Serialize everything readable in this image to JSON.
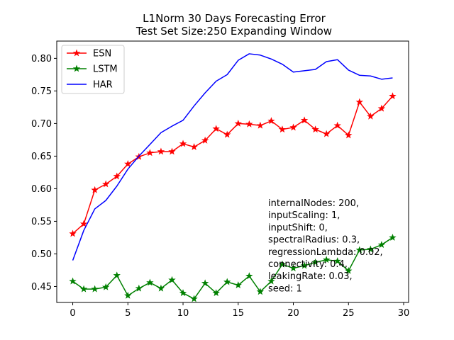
{
  "chart_data": {
    "type": "line",
    "title_lines": [
      "L1Norm 30 Days Forecasting Error",
      "Test Set Size:250  Expanding Window"
    ],
    "xlabel": "",
    "ylabel": "",
    "xlim": [
      -1.45,
      30.45
    ],
    "ylim": [
      0.4255,
      0.8265
    ],
    "xticks": [
      0,
      5,
      10,
      15,
      20,
      25,
      30
    ],
    "yticks": [
      0.45,
      0.5,
      0.55,
      0.6,
      0.65,
      0.7,
      0.75,
      0.8
    ],
    "ytick_labels": [
      "0.45",
      "0.50",
      "0.55",
      "0.60",
      "0.65",
      "0.70",
      "0.75",
      "0.80"
    ],
    "grid": false,
    "legend_position": "top-left",
    "x": [
      0,
      1,
      2,
      3,
      4,
      5,
      6,
      7,
      8,
      9,
      10,
      11,
      12,
      13,
      14,
      15,
      16,
      17,
      18,
      19,
      20,
      21,
      22,
      23,
      24,
      25,
      26,
      27,
      28,
      29
    ],
    "series": [
      {
        "name": "ESN",
        "color": "#ff0000",
        "marker": "star",
        "values": [
          0.531,
          0.546,
          0.598,
          0.607,
          0.619,
          0.638,
          0.649,
          0.655,
          0.657,
          0.657,
          0.669,
          0.664,
          0.674,
          0.692,
          0.683,
          0.7,
          0.699,
          0.697,
          0.704,
          0.691,
          0.694,
          0.705,
          0.691,
          0.684,
          0.697,
          0.682,
          0.733,
          0.711,
          0.723,
          0.742
        ]
      },
      {
        "name": "LSTM",
        "color": "#008000",
        "marker": "star",
        "values": [
          0.458,
          0.446,
          0.446,
          0.449,
          0.467,
          0.436,
          0.447,
          0.456,
          0.447,
          0.46,
          0.44,
          0.431,
          0.455,
          0.44,
          0.457,
          0.452,
          0.466,
          0.442,
          0.458,
          0.484,
          0.478,
          0.482,
          0.487,
          0.491,
          0.489,
          0.474,
          0.506,
          0.507,
          0.514,
          0.525
        ]
      },
      {
        "name": "HAR",
        "color": "#0000ff",
        "marker": "none",
        "values": [
          0.49,
          0.536,
          0.569,
          0.582,
          0.604,
          0.63,
          0.65,
          0.668,
          0.686,
          0.696,
          0.705,
          0.727,
          0.747,
          0.765,
          0.775,
          0.797,
          0.807,
          0.805,
          0.799,
          0.791,
          0.779,
          0.781,
          0.783,
          0.795,
          0.798,
          0.782,
          0.774,
          0.773,
          0.768,
          0.77
        ]
      }
    ],
    "annotation_lines": [
      "internalNodes: 200,",
      "inputScaling: 1,",
      "inputShift: 0,",
      "spectralRadius: 0.3,",
      "regressionLambda: 0.02,",
      "connectivity: 0.4,",
      "leakingRate: 0.03,",
      "seed: 1"
    ]
  }
}
